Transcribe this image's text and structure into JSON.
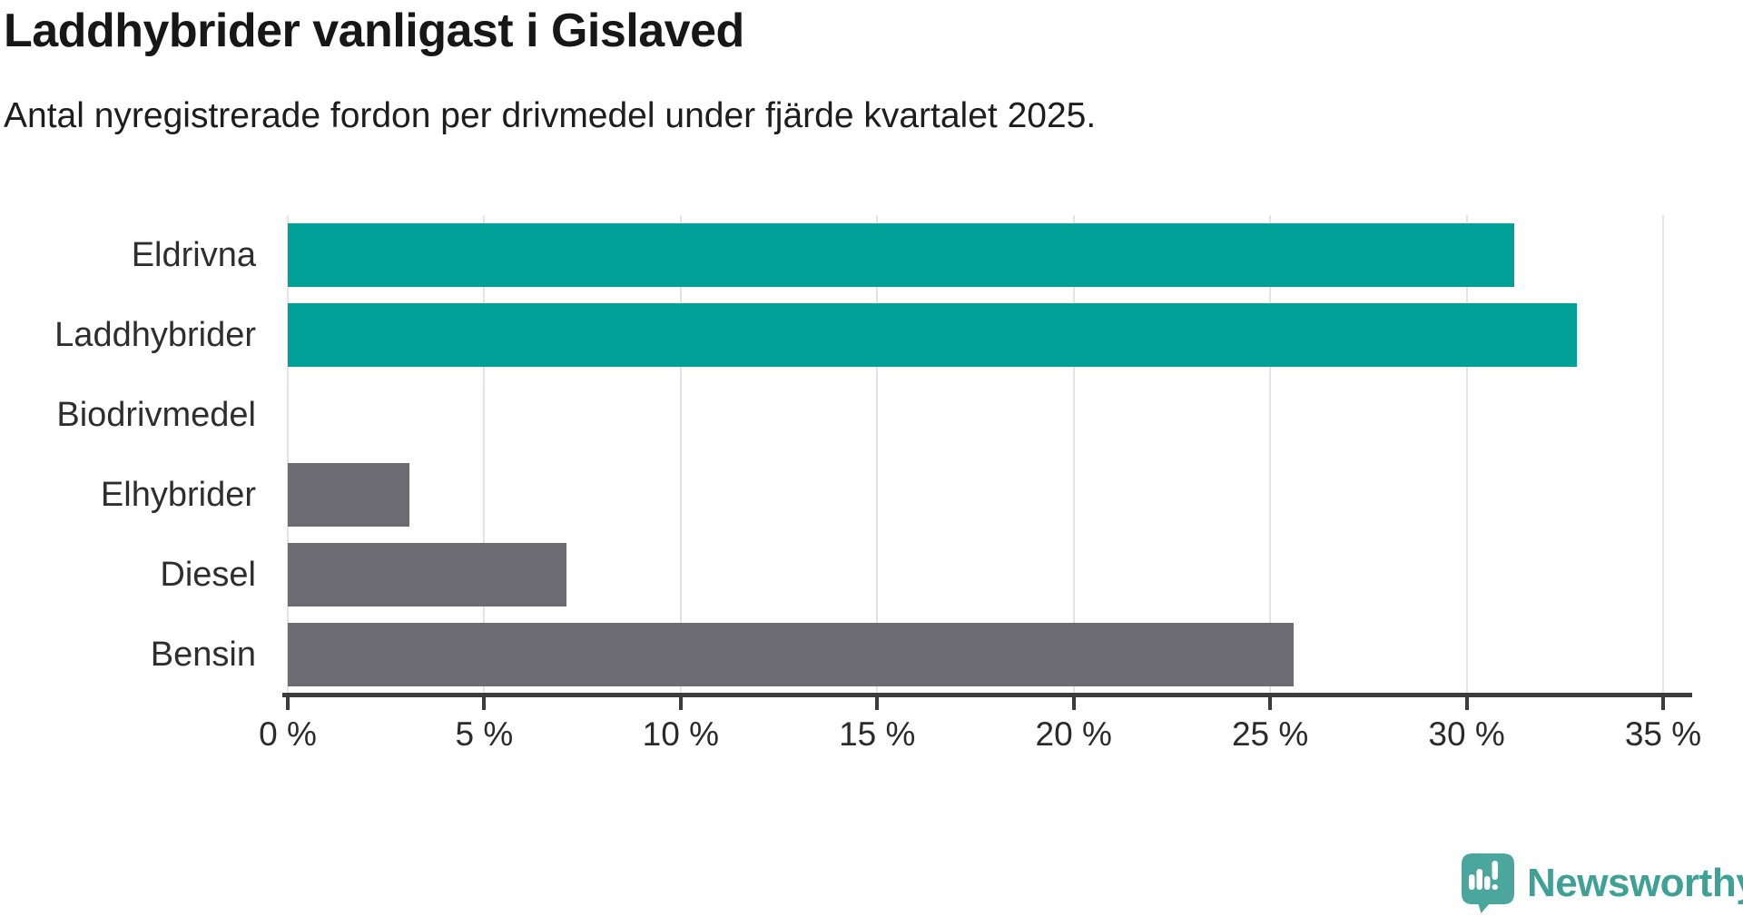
{
  "header": {
    "title": "Laddhybrider vanligast i Gislaved",
    "subtitle": "Antal nyregistrerade fordon per drivmedel under fjärde kvartalet 2025."
  },
  "chart_data": {
    "type": "bar",
    "orientation": "horizontal",
    "title": "Laddhybrider vanligast i Gislaved",
    "subtitle": "Antal nyregistrerade fordon per drivmedel under fjärde kvartalet 2025.",
    "categories": [
      "Eldrivna",
      "Laddhybrider",
      "Biodrivmedel",
      "Elhybrider",
      "Diesel",
      "Bensin"
    ],
    "values": [
      31.2,
      32.8,
      0,
      3.1,
      7.1,
      25.6
    ],
    "unit": "%",
    "xlim": [
      0,
      35
    ],
    "x_tick_values": [
      0,
      5,
      10,
      15,
      20,
      25,
      30,
      35
    ],
    "x_ticks": [
      "0 %",
      "5 %",
      "10 %",
      "15 %",
      "20 %",
      "25 %",
      "30 %",
      "35 %"
    ],
    "bar_colors": [
      "#00a099",
      "#00a099",
      "#6c6b71",
      "#6c6b71",
      "#6c6b71",
      "#6c6b71"
    ],
    "colors": {
      "highlight": "#00a099",
      "default": "#6c6b71",
      "gridline": "#e4e4e4",
      "axis": "#3b3b3b"
    },
    "grid": true,
    "legend": false
  },
  "branding": {
    "logo_text": "Newsworthy",
    "logo_color": "#3fa095",
    "icon_color": "#4ba69d",
    "icon": "speech-bubble-bar-chart-icon"
  }
}
